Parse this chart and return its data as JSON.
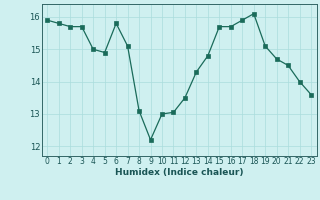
{
  "x": [
    0,
    1,
    2,
    3,
    4,
    5,
    6,
    7,
    8,
    9,
    10,
    11,
    12,
    13,
    14,
    15,
    16,
    17,
    18,
    19,
    20,
    21,
    22,
    23
  ],
  "y": [
    15.9,
    15.8,
    15.7,
    15.7,
    15.0,
    14.9,
    15.8,
    15.1,
    13.1,
    12.2,
    13.0,
    13.05,
    13.5,
    14.3,
    14.8,
    15.7,
    15.7,
    15.9,
    16.1,
    15.1,
    14.7,
    14.5,
    14.0,
    13.6
  ],
  "xlabel": "Humidex (Indice chaleur)",
  "xlim": [
    -0.5,
    23.5
  ],
  "ylim": [
    11.7,
    16.4
  ],
  "yticks": [
    12,
    13,
    14,
    15,
    16
  ],
  "xticks": [
    0,
    1,
    2,
    3,
    4,
    5,
    6,
    7,
    8,
    9,
    10,
    11,
    12,
    13,
    14,
    15,
    16,
    17,
    18,
    19,
    20,
    21,
    22,
    23
  ],
  "line_color": "#1a6b5a",
  "marker_color": "#1a6b5a",
  "bg_color": "#cff0f0",
  "grid_color": "#aadddd",
  "axis_color": "#336666",
  "tick_label_color": "#1a5555",
  "xlabel_color": "#1a5555",
  "tick_fontsize": 5.5,
  "xlabel_fontsize": 6.5
}
